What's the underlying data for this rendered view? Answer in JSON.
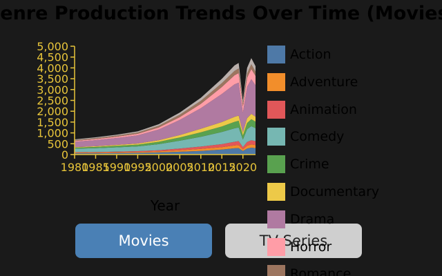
{
  "page": {
    "title": "Genre Production Trends Over Time (Movies)"
  },
  "buttons": {
    "movies_label": "Movies",
    "tv_label": "TV Series"
  },
  "colors": {
    "background": "#1a1a1a",
    "axis": "#e8c53a",
    "movies_button": "#4a80b5",
    "tv_button": "#cfcfcf"
  },
  "chart_data": {
    "type": "area",
    "stacked": true,
    "title": "Genre Production Trends Over Time (Movies)",
    "xlabel": "Year",
    "ylabel": "",
    "xlim": [
      1980,
      2023
    ],
    "ylim": [
      0,
      5000
    ],
    "x_ticks": [
      1980,
      1985,
      1990,
      1995,
      2000,
      2005,
      2010,
      2015,
      2020
    ],
    "y_ticks": [
      0,
      500,
      1000,
      1500,
      2000,
      2500,
      3000,
      3500,
      4000,
      4500,
      5000
    ],
    "y_tick_labels": [
      "0",
      "500",
      "1,000",
      "1,500",
      "2,000",
      "2,500",
      "3,000",
      "3,500",
      "4,000",
      "4,500",
      "5,000"
    ],
    "legend_position": "right",
    "grid": false,
    "x": [
      1980,
      1985,
      1990,
      1995,
      2000,
      2005,
      2010,
      2015,
      2018,
      2019,
      2020,
      2021,
      2022,
      2023
    ],
    "series": [
      {
        "name": "Action",
        "color": "#4e79a7",
        "values": [
          60,
          60,
          70,
          80,
          100,
          130,
          170,
          230,
          290,
          300,
          170,
          280,
          320,
          300
        ]
      },
      {
        "name": "Adventure",
        "color": "#f28e2b",
        "values": [
          30,
          30,
          35,
          40,
          50,
          70,
          90,
          110,
          130,
          140,
          70,
          130,
          150,
          140
        ]
      },
      {
        "name": "Animation",
        "color": "#e15759",
        "values": [
          20,
          25,
          30,
          40,
          50,
          80,
          110,
          140,
          170,
          180,
          100,
          170,
          190,
          180
        ]
      },
      {
        "name": "Comedy",
        "color": "#76b7b2",
        "values": [
          160,
          180,
          200,
          220,
          280,
          360,
          450,
          560,
          620,
          630,
          350,
          590,
          650,
          600
        ]
      },
      {
        "name": "Crime",
        "color": "#59a14f",
        "values": [
          50,
          60,
          70,
          80,
          110,
          150,
          210,
          260,
          300,
          310,
          190,
          290,
          320,
          300
        ]
      },
      {
        "name": "Documentary",
        "color": "#edc948",
        "values": [
          20,
          30,
          40,
          50,
          70,
          110,
          160,
          200,
          230,
          240,
          150,
          220,
          250,
          230
        ]
      },
      {
        "name": "Drama",
        "color": "#b07aa1",
        "values": [
          250,
          280,
          320,
          380,
          500,
          700,
          950,
          1300,
          1500,
          1520,
          900,
          1450,
          1600,
          1450
        ]
      },
      {
        "name": "Horror",
        "color": "#ff9da7",
        "values": [
          40,
          50,
          60,
          70,
          90,
          130,
          200,
          320,
          420,
          440,
          300,
          420,
          470,
          430
        ]
      },
      {
        "name": "Romance",
        "color": "#9c755f",
        "values": [
          40,
          45,
          50,
          60,
          80,
          110,
          140,
          180,
          200,
          210,
          130,
          200,
          220,
          200
        ]
      },
      {
        "name": "",
        "color": "#bab0ac",
        "values": [
          30,
          35,
          40,
          50,
          70,
          100,
          140,
          200,
          250,
          260,
          150,
          250,
          280,
          250
        ]
      }
    ]
  }
}
